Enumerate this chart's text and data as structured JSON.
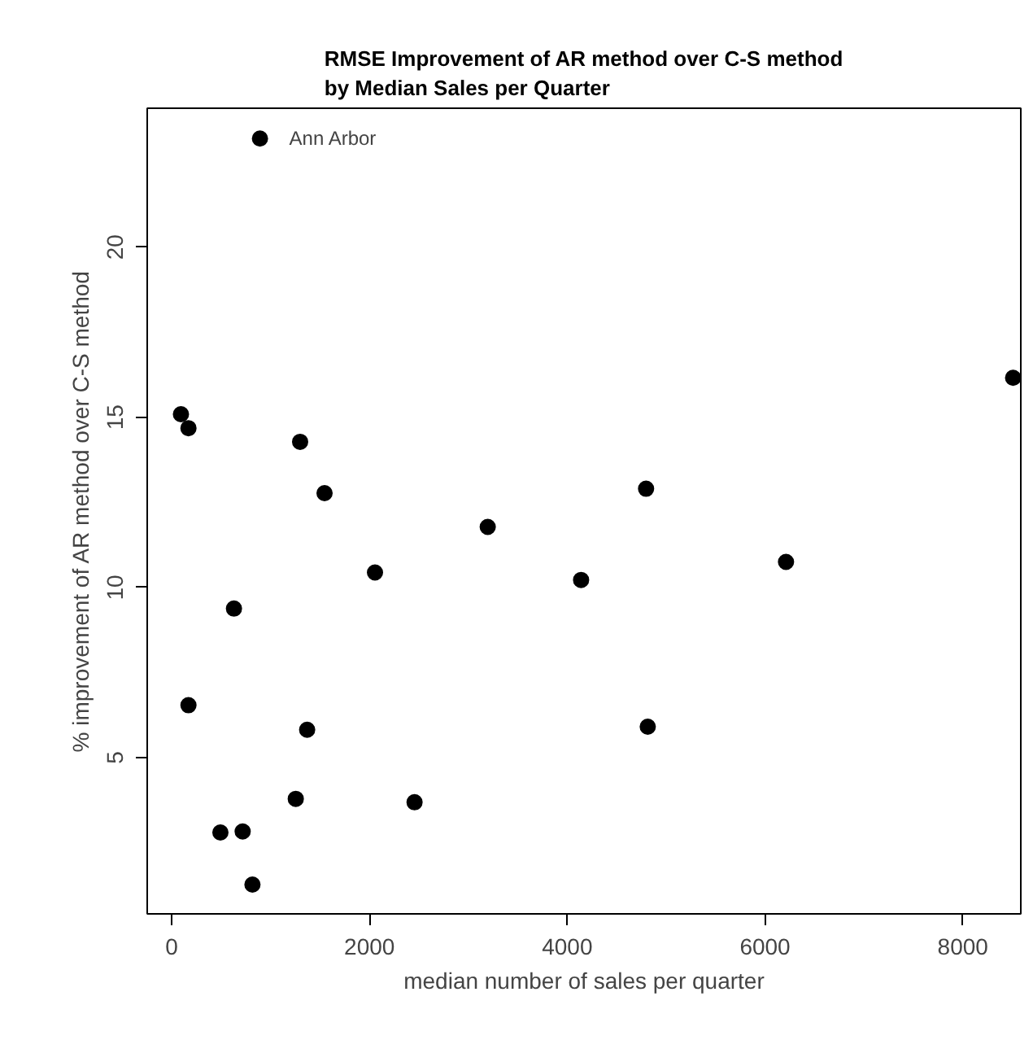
{
  "chart_data": {
    "type": "scatter",
    "title": "RMSE Improvement of AR method over C-S method\nby Median Sales per Quarter",
    "xlabel": "median number of sales per quarter",
    "ylabel": "% improvement of AR method over C-S method",
    "x": [
      893,
      94,
      170,
      1299,
      1546,
      3196,
      2056,
      630,
      170,
      1370,
      1255,
      2456,
      493,
      718,
      817,
      8508,
      4797,
      4140,
      6212,
      4814
    ],
    "series": [
      {
        "color": "#000000",
        "values": [
          23.19,
          15.09,
          14.68,
          14.28,
          12.77,
          11.78,
          10.44,
          9.38,
          6.54,
          5.82,
          3.79,
          3.69,
          2.8,
          2.83,
          1.27,
          16.16,
          12.9,
          10.22,
          10.75,
          5.91
        ]
      }
    ],
    "annotations": [
      {
        "text": "Ann Arbor",
        "x": 893,
        "y": 23.19
      }
    ],
    "xlim": [
      -247,
      8586
    ],
    "ylim": [
      0.41,
      24.08
    ],
    "xticks": [
      0,
      2000,
      4000,
      6000,
      8000
    ],
    "yticks": [
      5,
      10,
      15,
      20
    ],
    "grid": false,
    "marker": "circle"
  }
}
